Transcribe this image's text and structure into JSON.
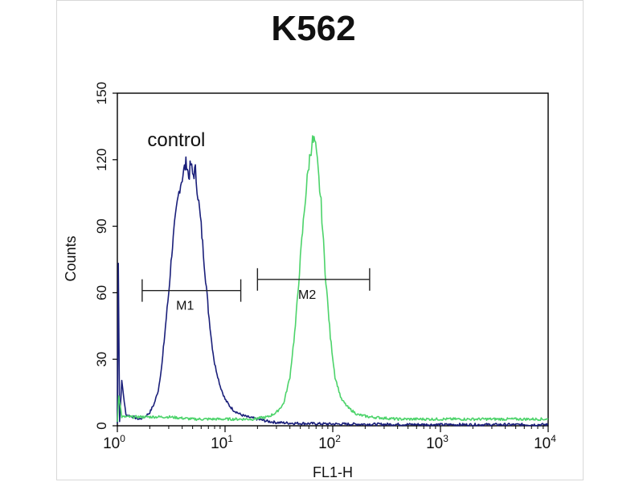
{
  "chart_data": {
    "type": "line",
    "title": "K562",
    "xlabel": "FL1-H",
    "ylabel": "Counts",
    "x_scale": "log",
    "xlim": [
      1,
      10000
    ],
    "ylim": [
      0,
      150
    ],
    "x_ticks": [
      {
        "base": "10",
        "exp": "0",
        "value": 1
      },
      {
        "base": "10",
        "exp": "1",
        "value": 10
      },
      {
        "base": "10",
        "exp": "2",
        "value": 100
      },
      {
        "base": "10",
        "exp": "3",
        "value": 1000
      },
      {
        "base": "10",
        "exp": "4",
        "value": 10000
      }
    ],
    "y_ticks": [
      0,
      30,
      60,
      90,
      120,
      150
    ],
    "annotations": [
      {
        "text": "control",
        "x": 1.9,
        "y": 126
      }
    ],
    "markers": [
      {
        "label": "M1",
        "x_start": 1.7,
        "x_end": 14,
        "y": 61
      },
      {
        "label": "M2",
        "x_start": 20,
        "x_end": 220,
        "y": 66
      }
    ],
    "series": [
      {
        "color": "#1a1f7a",
        "points": [
          [
            1.0,
            1
          ],
          [
            1.02,
            75
          ],
          [
            1.05,
            2
          ],
          [
            1.1,
            20
          ],
          [
            1.2,
            5
          ],
          [
            1.4,
            4
          ],
          [
            1.6,
            3
          ],
          [
            1.8,
            4
          ],
          [
            2.0,
            6
          ],
          [
            2.2,
            10
          ],
          [
            2.4,
            16
          ],
          [
            2.6,
            28
          ],
          [
            2.8,
            45
          ],
          [
            3.0,
            60
          ],
          [
            3.2,
            78
          ],
          [
            3.4,
            90
          ],
          [
            3.6,
            100
          ],
          [
            3.8,
            108
          ],
          [
            4.0,
            112
          ],
          [
            4.2,
            116
          ],
          [
            4.4,
            119
          ],
          [
            4.6,
            112
          ],
          [
            4.8,
            118
          ],
          [
            5.0,
            113
          ],
          [
            5.3,
            115
          ],
          [
            5.6,
            104
          ],
          [
            6.0,
            90
          ],
          [
            6.5,
            70
          ],
          [
            7.0,
            52
          ],
          [
            7.5,
            38
          ],
          [
            8.0,
            28
          ],
          [
            9.0,
            18
          ],
          [
            10,
            12
          ],
          [
            11,
            9
          ],
          [
            12,
            7
          ],
          [
            14,
            5
          ],
          [
            16,
            4
          ],
          [
            20,
            3
          ],
          [
            25,
            2
          ],
          [
            30,
            1.5
          ],
          [
            40,
            1.2
          ],
          [
            60,
            1
          ],
          [
            100,
            0.8
          ],
          [
            1000,
            0.5
          ],
          [
            10000,
            0.5
          ]
        ]
      },
      {
        "color": "#4cd36a",
        "points": [
          [
            1.0,
            2
          ],
          [
            1.03,
            14
          ],
          [
            1.1,
            4
          ],
          [
            1.3,
            4
          ],
          [
            1.6,
            4
          ],
          [
            2.0,
            4
          ],
          [
            3.0,
            4
          ],
          [
            5.0,
            3
          ],
          [
            8.0,
            3
          ],
          [
            12,
            3
          ],
          [
            18,
            3
          ],
          [
            25,
            4
          ],
          [
            30,
            6
          ],
          [
            35,
            10
          ],
          [
            40,
            22
          ],
          [
            45,
            45
          ],
          [
            50,
            75
          ],
          [
            55,
            100
          ],
          [
            60,
            118
          ],
          [
            64,
            128
          ],
          [
            68,
            128
          ],
          [
            72,
            118
          ],
          [
            78,
            100
          ],
          [
            85,
            70
          ],
          [
            95,
            40
          ],
          [
            105,
            22
          ],
          [
            120,
            12
          ],
          [
            140,
            8
          ],
          [
            170,
            5
          ],
          [
            220,
            4
          ],
          [
            400,
            3
          ],
          [
            1000,
            3
          ],
          [
            10000,
            3
          ]
        ]
      }
    ]
  }
}
